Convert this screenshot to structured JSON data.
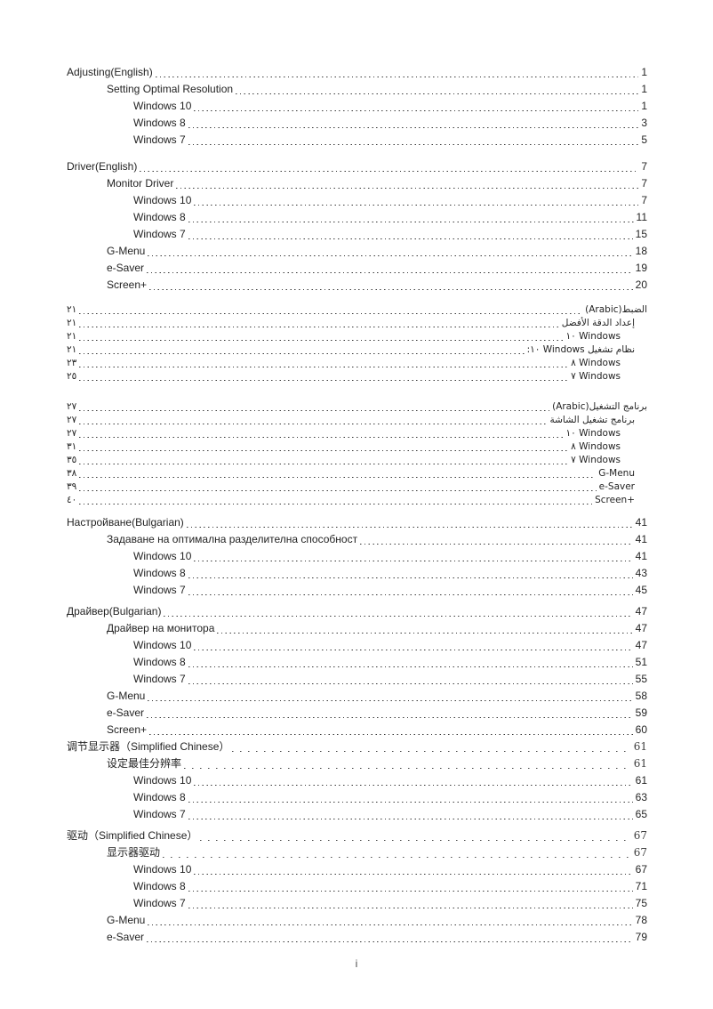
{
  "document": {
    "footer_page_number": "i"
  },
  "toc": {
    "text_color": "#232323",
    "sections": [
      {
        "id": "adjusting-english",
        "dir": "ltr",
        "rows": [
          {
            "level": 1,
            "text": "Adjusting(English)",
            "page": "1"
          },
          {
            "level": 2,
            "text": "Setting Optimal Resolution",
            "page": "1"
          },
          {
            "level": 3,
            "text": "Windows 10",
            "page": "1"
          },
          {
            "level": 3,
            "text": "Windows 8",
            "page": "3"
          },
          {
            "level": 3,
            "text": "Windows 7",
            "page": "5"
          }
        ]
      },
      {
        "id": "driver-english",
        "dir": "ltr",
        "rows": [
          {
            "level": 1,
            "text": "Driver(English)",
            "page": "7"
          },
          {
            "level": 2,
            "text": "Monitor Driver",
            "page": "7"
          },
          {
            "level": 3,
            "text": "Windows 10",
            "page": "7"
          },
          {
            "level": 3,
            "text": "Windows 8",
            "page": "11"
          },
          {
            "level": 3,
            "text": "Windows 7",
            "page": "15"
          },
          {
            "level": 2,
            "text": "G-Menu",
            "page": "18"
          },
          {
            "level": 2,
            "text": "e-Saver",
            "page": "19"
          },
          {
            "level": 2,
            "text": "Screen+",
            "page": "20"
          }
        ]
      },
      {
        "id": "adjusting-arabic",
        "dir": "rtl",
        "rows": [
          {
            "level": 1,
            "text": "الضبط(Arabic)",
            "page": "٢١"
          },
          {
            "level": 2,
            "text": "إعداد الدقة الأفضل",
            "page": "٢١"
          },
          {
            "level": 3,
            "text": "Windows ١٠",
            "page": "٢١"
          },
          {
            "level": 2,
            "text": "نظام تشغيل Windows ١٠:",
            "page": "٢١"
          },
          {
            "level": 3,
            "text": "Windows ٨",
            "page": "٢٣"
          },
          {
            "level": 3,
            "text": "Windows ٧",
            "page": "٢٥"
          }
        ]
      },
      {
        "id": "driver-arabic",
        "dir": "rtl",
        "rows": [
          {
            "level": 1,
            "text": "برنامج التشغيل(Arabic)",
            "page": "٢٧"
          },
          {
            "level": 2,
            "text": "برنامج تشغيل الشاشة",
            "page": "٢٧"
          },
          {
            "level": 3,
            "text": "Windows ١٠",
            "page": "٢٧"
          },
          {
            "level": 3,
            "text": "Windows ٨",
            "page": "٣١"
          },
          {
            "level": 3,
            "text": "Windows ٧",
            "page": "٣٥"
          },
          {
            "level": 2,
            "text": "G-Menu",
            "page": "٣٨",
            "latin": true
          },
          {
            "level": 2,
            "text": "e-Saver",
            "page": "٣٩",
            "latin": true
          },
          {
            "level": 2,
            "text": "Screen+",
            "page": "٤٠",
            "latin": true
          }
        ]
      },
      {
        "id": "adjusting-bulgarian",
        "dir": "ltr",
        "rows": [
          {
            "level": 1,
            "text": "Настройване(Bulgarian)",
            "page": "41"
          },
          {
            "level": 2,
            "text": "Задаване на оптимална разделителна способност",
            "page": "41"
          },
          {
            "level": 3,
            "text": "Windows 10",
            "page": "41"
          },
          {
            "level": 3,
            "text": "Windows 8",
            "page": "43"
          },
          {
            "level": 3,
            "text": "Windows 7",
            "page": "45"
          }
        ]
      },
      {
        "id": "driver-bulgarian",
        "dir": "ltr",
        "rows": [
          {
            "level": 1,
            "text": "Драйвер(Bulgarian)",
            "page": "47"
          },
          {
            "level": 2,
            "text": "Драйвер на монитора",
            "page": "47"
          },
          {
            "level": 3,
            "text": "Windows 10",
            "page": "47"
          },
          {
            "level": 3,
            "text": "Windows 8",
            "page": "51"
          },
          {
            "level": 3,
            "text": "Windows 7",
            "page": "55"
          },
          {
            "level": 2,
            "text": "G-Menu",
            "page": "58"
          },
          {
            "level": 2,
            "text": "e-Saver",
            "page": "59"
          },
          {
            "level": 2,
            "text": "Screen+",
            "page": "60"
          }
        ]
      },
      {
        "id": "adjusting-chinese",
        "dir": "ltr",
        "rows": [
          {
            "level": 1,
            "text": "调节显示器（Simplified Chinese）",
            "page": "61",
            "wide": true
          },
          {
            "level": 2,
            "text": "设定最佳分辨率",
            "page": "61",
            "wide": true
          },
          {
            "level": 3,
            "text": "Windows 10",
            "page": "61"
          },
          {
            "level": 3,
            "text": "Windows 8",
            "page": "63"
          },
          {
            "level": 3,
            "text": "Windows 7",
            "page": "65"
          }
        ]
      },
      {
        "id": "driver-chinese",
        "dir": "ltr",
        "rows": [
          {
            "level": 1,
            "text": "驱动（Simplified Chinese）",
            "page": "67",
            "wide": true
          },
          {
            "level": 2,
            "text": "显示器驱动",
            "page": "67",
            "wide": true
          },
          {
            "level": 3,
            "text": "Windows 10",
            "page": "67"
          },
          {
            "level": 3,
            "text": "Windows 8",
            "page": "71"
          },
          {
            "level": 3,
            "text": "Windows 7",
            "page": "75"
          },
          {
            "level": 2,
            "text": "G-Menu",
            "page": "78"
          },
          {
            "level": 2,
            "text": "e-Saver",
            "page": "79"
          }
        ]
      }
    ]
  }
}
